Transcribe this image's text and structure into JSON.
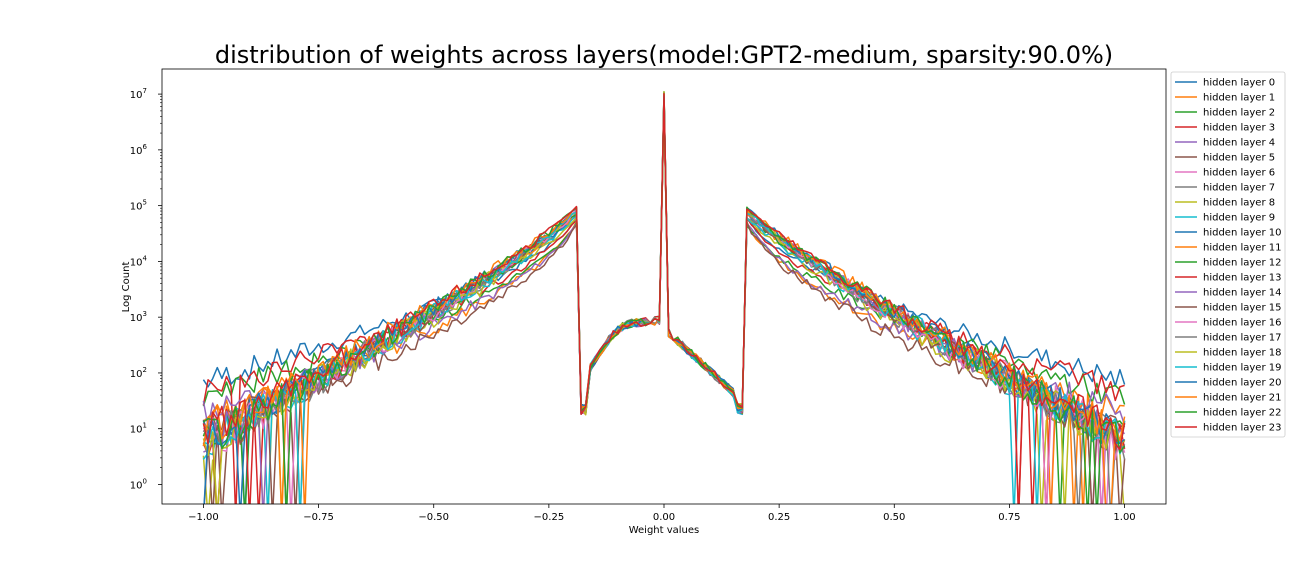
{
  "chart_data": {
    "type": "line",
    "title": "distribution of weights across layers(model:GPT2-medium, sparsity:90.0%)",
    "xlabel": "Weight values",
    "ylabel": "Log Count",
    "yscale": "log",
    "xlim": [
      -1.09,
      1.09
    ],
    "ylim_log10": [
      -0.35,
      7.45
    ],
    "x_ticks": [
      -1.0,
      -0.75,
      -0.5,
      -0.25,
      0.0,
      0.25,
      0.5,
      0.75,
      1.0
    ],
    "x_tick_labels": [
      "−1.00",
      "−0.75",
      "−0.50",
      "−0.25",
      "0.00",
      "0.25",
      "0.50",
      "0.75",
      "1.00"
    ],
    "y_ticks_log10": [
      0,
      1,
      2,
      3,
      4,
      5,
      6,
      7
    ],
    "y_tick_labels": [
      "10",
      "10",
      "10",
      "10",
      "10",
      "10",
      "10",
      "10"
    ],
    "y_tick_exponents": [
      "0",
      "1",
      "2",
      "3",
      "4",
      "5",
      "6",
      "7"
    ],
    "grid": false,
    "legend_position": "outside-right",
    "colors": [
      "#1f77b4",
      "#ff7f0e",
      "#2ca02c",
      "#d62728",
      "#9467bd",
      "#8c564b",
      "#e377c2",
      "#7f7f7f",
      "#bcbd22",
      "#17becf"
    ],
    "series": [
      {
        "name": "hidden layer 0",
        "peak_log10": 5.0,
        "edge_log10": 1.85
      },
      {
        "name": "hidden layer 1",
        "peak_log10": 4.95,
        "edge_log10": 1.2
      },
      {
        "name": "hidden layer 2",
        "peak_log10": 4.9,
        "edge_log10": 1.55
      },
      {
        "name": "hidden layer 3",
        "peak_log10": 5.0,
        "edge_log10": 1.65
      },
      {
        "name": "hidden layer 4",
        "peak_log10": 4.95,
        "edge_log10": 1.25
      },
      {
        "name": "hidden layer 5",
        "peak_log10": 4.95,
        "edge_log10": 1.0
      },
      {
        "name": "hidden layer 6",
        "peak_log10": 4.95,
        "edge_log10": 0.85
      },
      {
        "name": "hidden layer 7",
        "peak_log10": 4.9,
        "edge_log10": 0.75
      },
      {
        "name": "hidden layer 8",
        "peak_log10": 4.85,
        "edge_log10": 0.7
      },
      {
        "name": "hidden layer 9",
        "peak_log10": 4.9,
        "edge_log10": 0.75
      },
      {
        "name": "hidden layer 10",
        "peak_log10": 4.95,
        "edge_log10": 0.85
      },
      {
        "name": "hidden layer 11",
        "peak_log10": 4.95,
        "edge_log10": 0.9
      },
      {
        "name": "hidden layer 12",
        "peak_log10": 4.95,
        "edge_log10": 0.8
      },
      {
        "name": "hidden layer 13",
        "peak_log10": 5.0,
        "edge_log10": 0.8
      },
      {
        "name": "hidden layer 14",
        "peak_log10": 5.0,
        "edge_log10": 0.75
      },
      {
        "name": "hidden layer 15",
        "peak_log10": 5.0,
        "edge_log10": 0.7
      },
      {
        "name": "hidden layer 16",
        "peak_log10": 5.0,
        "edge_log10": 0.7
      },
      {
        "name": "hidden layer 17",
        "peak_log10": 5.0,
        "edge_log10": 0.75
      },
      {
        "name": "hidden layer 18",
        "peak_log10": 5.0,
        "edge_log10": 0.75
      },
      {
        "name": "hidden layer 19",
        "peak_log10": 5.0,
        "edge_log10": 0.8
      },
      {
        "name": "hidden layer 20",
        "peak_log10": 5.05,
        "edge_log10": 0.85
      },
      {
        "name": "hidden layer 21",
        "peak_log10": 5.05,
        "edge_log10": 0.95
      },
      {
        "name": "hidden layer 22",
        "peak_log10": 5.05,
        "edge_log10": 0.8
      },
      {
        "name": "hidden layer 23",
        "peak_log10": 5.05,
        "edge_log10": 0.9
      }
    ],
    "shape": {
      "x_step": 0.01,
      "gap_edges": [
        -0.18,
        0.17
      ],
      "center_spike_log10": 7.05,
      "inner_level_log10": 2.8,
      "inner_low_log10": 1.5
    }
  }
}
